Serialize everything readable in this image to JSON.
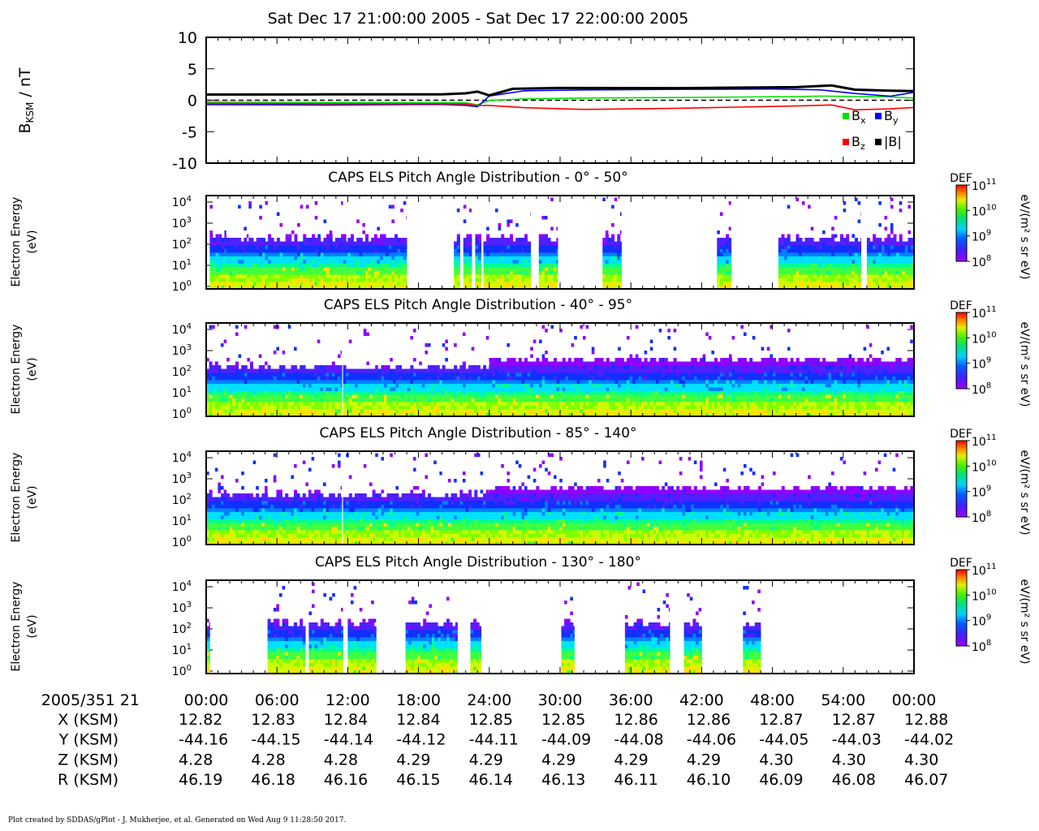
{
  "title": "Sat Dec 17 21:00:00 2005 - Sat Dec 17 22:00:00 2005",
  "footer": "Plot created by SDDAS/gPlot - J. Mukherjee, et al.  Generated on Wed Aug 9 11:28:50 2017.",
  "colors": {
    "bx": "#00e000",
    "by": "#0000ff",
    "bz": "#ff0000",
    "bmag": "#000000"
  },
  "chart_data": [
    {
      "type": "line",
      "ylabel_main": "B",
      "ylabel_sub": "KSM",
      "ylabel_unit": " / nT",
      "ylim": [
        -10,
        10
      ],
      "yticks": [
        "10",
        "5",
        "0",
        "-5",
        "-10"
      ],
      "xlim": [
        0,
        60
      ],
      "legend": {
        "bx": "B",
        "bx_sub": "x",
        "by": "B",
        "by_sub": "y",
        "bz": "B",
        "bz_sub": "z",
        "bmag": "|B|"
      },
      "series": [
        {
          "name": "Bx",
          "x": [
            0,
            10,
            20,
            22,
            23,
            24,
            27,
            32,
            40,
            50,
            52,
            55,
            58,
            60
          ],
          "y": [
            -0.3,
            -0.3,
            -0.3,
            -0.4,
            -0.8,
            -0.1,
            0.2,
            0.4,
            0.5,
            0.6,
            0.6,
            0.5,
            0.5,
            0.4
          ]
        },
        {
          "name": "By",
          "x": [
            0,
            10,
            20,
            22,
            23,
            24,
            27,
            32,
            40,
            48,
            52,
            55,
            58,
            60
          ],
          "y": [
            -0.7,
            -0.7,
            -0.6,
            -0.8,
            -1.1,
            0.6,
            1.5,
            1.7,
            1.8,
            1.8,
            1.6,
            1.0,
            0.6,
            1.3
          ]
        },
        {
          "name": "Bz",
          "x": [
            0,
            10,
            20,
            22,
            23,
            24,
            27,
            32,
            40,
            50,
            53,
            55,
            58,
            60
          ],
          "y": [
            -0.5,
            -0.5,
            -0.5,
            -0.6,
            -0.9,
            -0.9,
            -1.2,
            -1.4,
            -1.2,
            -0.9,
            -0.8,
            -1.6,
            -1.4,
            -1.1
          ]
        },
        {
          "name": "|B|",
          "x": [
            0,
            10,
            20,
            22,
            23,
            24,
            26,
            30,
            40,
            50,
            53,
            55,
            58,
            60
          ],
          "y": [
            0.9,
            1.0,
            1.0,
            1.1,
            1.3,
            0.7,
            1.8,
            2.0,
            2.0,
            2.1,
            2.3,
            1.6,
            1.5,
            1.5
          ]
        }
      ]
    },
    {
      "type": "heatmap",
      "title": "CAPS ELS Pitch Angle Distribution - 0° - 50°",
      "ylabel": "Electron Energy",
      "yunit": "(eV)",
      "ytick_base": "10",
      "ytick_exp": [
        "0",
        "1",
        "2",
        "3",
        "4"
      ],
      "xlim": [
        0,
        60
      ],
      "data_intervals": [
        [
          0.3,
          1.7
        ],
        [
          1.7,
          3.6
        ],
        [
          3.6,
          4.0
        ],
        [
          4.0,
          11.6
        ],
        [
          11.6,
          12.0
        ],
        [
          12.0,
          17.0
        ],
        [
          21.0,
          21.5
        ],
        [
          21.8,
          22.5
        ],
        [
          22.8,
          23.3
        ],
        [
          23.5,
          24.0
        ],
        [
          24.0,
          27.5
        ],
        [
          28.2,
          29.8
        ],
        [
          33.6,
          35.2
        ],
        [
          43.3,
          44.5
        ],
        [
          48.5,
          50.5
        ],
        [
          50.5,
          52.5
        ],
        [
          52.5,
          55.5
        ],
        [
          56.0,
          58.0
        ],
        [
          58.0,
          60.0
        ]
      ],
      "colorbar_label": "DEF",
      "colorbar_unit": "eV/(m² s sr eV)",
      "colorbar_ticks": [
        "10",
        "10",
        "10",
        "10"
      ],
      "colorbar_exp": [
        "11",
        "10",
        "9",
        "8"
      ]
    },
    {
      "type": "heatmap",
      "title": "CAPS ELS Pitch Angle Distribution - 40° - 95°",
      "ylabel": "Electron Energy",
      "yunit": "(eV)",
      "ytick_base": "10",
      "ytick_exp": [
        "0",
        "1",
        "2",
        "3",
        "4"
      ],
      "xlim": [
        0,
        60
      ],
      "data_intervals": [
        [
          0.0,
          11.5
        ],
        [
          11.6,
          20.0
        ],
        [
          20.0,
          24.0
        ],
        [
          24.0,
          60.0
        ]
      ],
      "colorbar_label": "DEF",
      "colorbar_unit": "eV/(m² s sr eV)",
      "colorbar_ticks": [
        "10",
        "10",
        "10",
        "10"
      ],
      "colorbar_exp": [
        "11",
        "10",
        "9",
        "8"
      ]
    },
    {
      "type": "heatmap",
      "title": "CAPS ELS Pitch Angle Distribution - 85° - 140°",
      "ylabel": "Electron Energy",
      "yunit": "(eV)",
      "ytick_base": "10",
      "ytick_exp": [
        "0",
        "1",
        "2",
        "3",
        "4"
      ],
      "xlim": [
        0,
        60
      ],
      "data_intervals": [
        [
          0.0,
          11.5
        ],
        [
          11.6,
          20.0
        ],
        [
          20.0,
          24.0
        ],
        [
          24.0,
          60.0
        ]
      ],
      "colorbar_label": "DEF",
      "colorbar_unit": "eV/(m² s sr eV)",
      "colorbar_ticks": [
        "10",
        "10",
        "10",
        "10"
      ],
      "colorbar_exp": [
        "11",
        "10",
        "9",
        "8"
      ]
    },
    {
      "type": "heatmap",
      "title": "CAPS ELS Pitch Angle Distribution - 130° - 180°",
      "ylabel": "Electron Energy",
      "yunit": "(eV)",
      "ytick_base": "10",
      "ytick_exp": [
        "0",
        "1",
        "2",
        "3",
        "4"
      ],
      "xlim": [
        0,
        60
      ],
      "data_intervals": [
        [
          0.0,
          0.3
        ],
        [
          5.2,
          8.4
        ],
        [
          8.7,
          11.6
        ],
        [
          12.0,
          14.4
        ],
        [
          16.9,
          21.3
        ],
        [
          22.4,
          23.3
        ],
        [
          30.1,
          31.2
        ],
        [
          35.5,
          39.3
        ],
        [
          40.5,
          42.0
        ],
        [
          45.5,
          47.0
        ]
      ],
      "colorbar_label": "DEF",
      "colorbar_unit": "eV/(m² s sr eV)",
      "colorbar_ticks": [
        "10",
        "10",
        "10",
        "10"
      ],
      "colorbar_exp": [
        "11",
        "10",
        "9",
        "8"
      ]
    }
  ],
  "axis_table": {
    "header": "2005/351 21",
    "times": [
      "00:00",
      "06:00",
      "12:00",
      "18:00",
      "24:00",
      "30:00",
      "36:00",
      "42:00",
      "48:00",
      "54:00",
      "00:00"
    ],
    "rows": [
      {
        "label": "X (KSM)",
        "values": [
          "12.82",
          "12.83",
          "12.84",
          "12.84",
          "12.85",
          "12.85",
          "12.86",
          "12.86",
          "12.87",
          "12.87",
          "12.88"
        ]
      },
      {
        "label": "Y (KSM)",
        "values": [
          "-44.16",
          "-44.15",
          "-44.14",
          "-44.12",
          "-44.11",
          "-44.09",
          "-44.08",
          "-44.06",
          "-44.05",
          "-44.03",
          "-44.02"
        ]
      },
      {
        "label": "Z (KSM)",
        "values": [
          "4.28",
          "4.28",
          "4.28",
          "4.29",
          "4.29",
          "4.29",
          "4.29",
          "4.29",
          "4.30",
          "4.30",
          "4.30"
        ]
      },
      {
        "label": "R (KSM)",
        "values": [
          "46.19",
          "46.18",
          "46.16",
          "46.15",
          "46.14",
          "46.13",
          "46.11",
          "46.10",
          "46.09",
          "46.08",
          "46.07"
        ]
      }
    ]
  }
}
